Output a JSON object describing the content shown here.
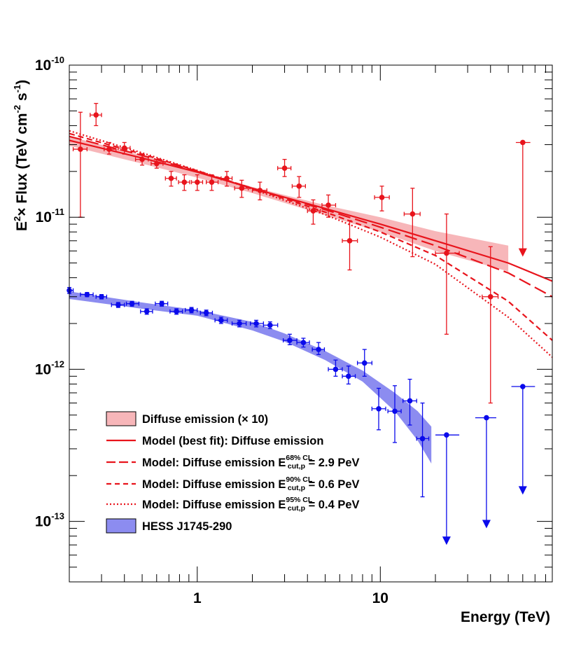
{
  "chart_data": {
    "type": "scatter",
    "title": "",
    "xlabel": "Energy (TeV)",
    "ylabel_parts": {
      "e": "E",
      "exp2": "2",
      "times": "× Flux (TeV cm",
      "exp_m2": "-2",
      "s": " s",
      "exp_m1": "-1",
      "close": ")"
    },
    "xscale": "log",
    "yscale": "log",
    "xlim": [
      0.2,
      87
    ],
    "ylim": [
      4e-14,
      1e-10
    ],
    "x_ticks": [
      {
        "value": 1,
        "label": "1"
      },
      {
        "value": 10,
        "label": "10"
      }
    ],
    "y_ticks": [
      {
        "value": 1e-13,
        "base": "10",
        "exp": "-13"
      },
      {
        "value": 1e-12,
        "base": "10",
        "exp": "-12"
      },
      {
        "value": 1e-11,
        "base": "10",
        "exp": "-11"
      },
      {
        "value": 1e-10,
        "base": "10",
        "exp": "-10"
      }
    ],
    "colors": {
      "red": "#e8141c",
      "red_band": "#f7b6b9",
      "blue": "#0a0aeb",
      "blue_band": "#8c8cf0"
    },
    "legend": [
      {
        "id": "diffuse_band",
        "style": "red-band",
        "label": "Diffuse emission (× 10)"
      },
      {
        "id": "model_best",
        "style": "red-solid",
        "label": "Model (best fit): Diffuse emission"
      },
      {
        "id": "model_68",
        "style": "red-longdash",
        "label": "Model: Diffuse emission E",
        "sup": "68% CL",
        "sub": "cut,p",
        "tail": " = 2.9 PeV"
      },
      {
        "id": "model_90",
        "style": "red-dash",
        "label": "Model: Diffuse emission E",
        "sup": "90% CL",
        "sub": "cut,p",
        "tail": " = 0.6 PeV"
      },
      {
        "id": "model_95",
        "style": "red-dot",
        "label": "Model: Diffuse emission E",
        "sup": "95% CL",
        "sub": "cut,p",
        "tail": " = 0.4 PeV"
      },
      {
        "id": "hess_band",
        "style": "blue-band",
        "label": "HESS J1745-290"
      }
    ],
    "bands": [
      {
        "name": "Diffuse emission (× 10)",
        "color": "red_band",
        "points": [
          [
            0.2,
            2.95e-11,
            3.4e-11
          ],
          [
            0.5,
            2.25e-11,
            2.55e-11
          ],
          [
            1.0,
            1.82e-11,
            2e-11
          ],
          [
            2.0,
            1.44e-11,
            1.58e-11
          ],
          [
            5.0,
            1.03e-11,
            1.2e-11
          ],
          [
            10.0,
            8e-12,
            1e-11
          ],
          [
            20.0,
            6e-12,
            8.1e-12
          ],
          [
            50.0,
            4.4e-12,
            6.5e-12
          ]
        ]
      },
      {
        "name": "HESS J1745-290",
        "color": "blue_band",
        "points": [
          [
            0.2,
            2.9e-12,
            3.25e-12
          ],
          [
            0.5,
            2.5e-12,
            2.75e-12
          ],
          [
            1.0,
            2.25e-12,
            2.45e-12
          ],
          [
            2.0,
            1.8e-12,
            2.05e-12
          ],
          [
            3.0,
            1.52e-12,
            1.72e-12
          ],
          [
            5.0,
            1.15e-12,
            1.32e-12
          ],
          [
            8.0,
            8.3e-13,
            9.8e-13
          ],
          [
            12.0,
            5.3e-13,
            7e-13
          ],
          [
            16.0,
            3.4e-13,
            5.3e-13
          ],
          [
            19.0,
            2.4e-13,
            4.2e-13
          ]
        ]
      }
    ],
    "model_lines": [
      {
        "name": "Model (best fit): Diffuse emission",
        "dash": "",
        "width": 2.2,
        "points": [
          [
            0.2,
            3.2e-11
          ],
          [
            0.5,
            2.45e-11
          ],
          [
            1,
            1.98e-11
          ],
          [
            2,
            1.55e-11
          ],
          [
            5,
            1.14e-11
          ],
          [
            10,
            9e-12
          ],
          [
            20,
            7e-12
          ],
          [
            50,
            5e-12
          ],
          [
            87,
            3.8e-12
          ]
        ]
      },
      {
        "name": "E68",
        "dash": "18,7",
        "width": 2.2,
        "points": [
          [
            0.2,
            3.4e-11
          ],
          [
            0.5,
            2.55e-11
          ],
          [
            1,
            2e-11
          ],
          [
            2,
            1.55e-11
          ],
          [
            5,
            1.12e-11
          ],
          [
            10,
            8.6e-12
          ],
          [
            20,
            6.5e-12
          ],
          [
            50,
            4.3e-12
          ],
          [
            87,
            3e-12
          ]
        ]
      },
      {
        "name": "E90",
        "dash": "8,5",
        "width": 2.2,
        "points": [
          [
            0.2,
            3.55e-11
          ],
          [
            0.5,
            2.6e-11
          ],
          [
            1,
            2.02e-11
          ],
          [
            2,
            1.55e-11
          ],
          [
            5,
            1.08e-11
          ],
          [
            10,
            8e-12
          ],
          [
            20,
            5.6e-12
          ],
          [
            50,
            2.8e-12
          ],
          [
            87,
            1.55e-12
          ]
        ]
      },
      {
        "name": "E95",
        "dash": "2,3",
        "width": 2.2,
        "points": [
          [
            0.2,
            3.7e-11
          ],
          [
            0.5,
            2.65e-11
          ],
          [
            1,
            2.03e-11
          ],
          [
            2,
            1.53e-11
          ],
          [
            5,
            1.04e-11
          ],
          [
            10,
            7.4e-12
          ],
          [
            20,
            4.9e-12
          ],
          [
            50,
            2.2e-12
          ],
          [
            87,
            1.2e-12
          ]
        ]
      }
    ],
    "series": [
      {
        "name": "Diffuse emission (× 10) data",
        "color": "red",
        "points": [
          [
            0.23,
            2.8e-11,
            0.21,
            0.25,
            1e-11,
            4.9e-11
          ],
          [
            0.28,
            4.7e-11,
            0.26,
            0.3,
            4e-11,
            5.6e-11
          ],
          [
            0.33,
            2.8e-11,
            0.31,
            0.36,
            2.6e-11,
            3.1e-11
          ],
          [
            0.4,
            2.85e-11,
            0.37,
            0.43,
            2.6e-11,
            3.1e-11
          ],
          [
            0.5,
            2.4e-11,
            0.46,
            0.54,
            2.2e-11,
            2.6e-11
          ],
          [
            0.6,
            2.25e-11,
            0.56,
            0.65,
            2.1e-11,
            2.4e-11
          ],
          [
            0.72,
            1.8e-11,
            0.67,
            0.77,
            1.6e-11,
            2e-11
          ],
          [
            0.85,
            1.7e-11,
            0.79,
            0.91,
            1.5e-11,
            1.9e-11
          ],
          [
            1.0,
            1.7e-11,
            0.93,
            1.07,
            1.5e-11,
            1.9e-11
          ],
          [
            1.2,
            1.7e-11,
            1.12,
            1.3,
            1.5e-11,
            1.9e-11
          ],
          [
            1.45,
            1.8e-11,
            1.35,
            1.55,
            1.6e-11,
            2e-11
          ],
          [
            1.75,
            1.55e-11,
            1.6,
            1.9,
            1.35e-11,
            1.75e-11
          ],
          [
            2.2,
            1.5e-11,
            2.0,
            2.4,
            1.3e-11,
            1.7e-11
          ],
          [
            3.0,
            2.1e-11,
            2.75,
            3.25,
            1.85e-11,
            2.4e-11
          ],
          [
            3.6,
            1.6e-11,
            3.3,
            3.9,
            1.35e-11,
            1.85e-11
          ],
          [
            4.3,
            1.1e-11,
            4.0,
            4.7,
            9e-12,
            1.3e-11
          ],
          [
            5.2,
            1.2e-11,
            4.8,
            5.7,
            1e-11,
            1.4e-11
          ],
          [
            6.8,
            7e-12,
            6.2,
            7.5,
            4.5e-12,
            9.5e-12
          ],
          [
            10.2,
            1.35e-11,
            9.3,
            11.2,
            1.1e-11,
            1.6e-11
          ],
          [
            15,
            1.05e-11,
            13.5,
            16.5,
            5.5e-12,
            1.55e-11
          ],
          [
            23,
            5.8e-12,
            20,
            27,
            1.7e-12,
            1.05e-11
          ],
          [
            40,
            3e-12,
            36,
            44,
            6e-13,
            6.4e-12
          ]
        ],
        "upper_limits": [
          [
            60,
            3.1e-11,
            55,
            66,
            5.5e-12
          ]
        ]
      },
      {
        "name": "HESS J1745-290 data",
        "color": "blue",
        "points": [
          [
            0.2,
            3.3e-12,
            0.2,
            0.21,
            3.15e-12,
            3.45e-12
          ],
          [
            0.25,
            3.1e-12,
            0.23,
            0.27,
            3e-12,
            3.2e-12
          ],
          [
            0.3,
            3e-12,
            0.28,
            0.32,
            2.9e-12,
            3.1e-12
          ],
          [
            0.37,
            2.65e-12,
            0.34,
            0.4,
            2.55e-12,
            2.75e-12
          ],
          [
            0.44,
            2.7e-12,
            0.41,
            0.48,
            2.6e-12,
            2.8e-12
          ],
          [
            0.53,
            2.4e-12,
            0.49,
            0.57,
            2.3e-12,
            2.5e-12
          ],
          [
            0.64,
            2.7e-12,
            0.59,
            0.69,
            2.6e-12,
            2.8e-12
          ],
          [
            0.77,
            2.4e-12,
            0.71,
            0.83,
            2.3e-12,
            2.5e-12
          ],
          [
            0.93,
            2.45e-12,
            0.86,
            1.0,
            2.35e-12,
            2.55e-12
          ],
          [
            1.12,
            2.35e-12,
            1.04,
            1.21,
            2.25e-12,
            2.45e-12
          ],
          [
            1.35,
            2.1e-12,
            1.25,
            1.46,
            2e-12,
            2.2e-12
          ],
          [
            1.7,
            2e-12,
            1.55,
            1.85,
            1.9e-12,
            2.1e-12
          ],
          [
            2.1,
            2e-12,
            1.95,
            2.3,
            1.9e-12,
            2.1e-12
          ],
          [
            2.5,
            1.95e-12,
            2.3,
            2.75,
            1.85e-12,
            2.05e-12
          ],
          [
            3.2,
            1.55e-12,
            2.95,
            3.5,
            1.45e-12,
            1.7e-12
          ],
          [
            3.8,
            1.5e-12,
            3.5,
            4.1,
            1.4e-12,
            1.6e-12
          ],
          [
            4.6,
            1.35e-12,
            4.25,
            4.95,
            1.25e-12,
            1.5e-12
          ],
          [
            5.7,
            1e-12,
            5.2,
            6.2,
            9e-13,
            1.15e-12
          ],
          [
            6.7,
            9e-13,
            6.2,
            7.3,
            8e-13,
            1.05e-12
          ],
          [
            8.2,
            1.1e-12,
            7.5,
            9.0,
            9e-13,
            1.35e-12
          ],
          [
            9.8,
            5.5e-13,
            9.0,
            10.7,
            4e-13,
            7.5e-13
          ],
          [
            12,
            5.3e-13,
            11,
            13,
            3.3e-13,
            7.8e-13
          ],
          [
            14.5,
            6.2e-13,
            13.3,
            15.8,
            4.3e-13,
            8.6e-13
          ],
          [
            17,
            3.5e-13,
            15.8,
            18.4,
            1.45e-13,
            6e-13
          ]
        ],
        "upper_limits": [
          [
            23,
            3.7e-13,
            20,
            27,
            7e-14
          ],
          [
            38,
            4.8e-13,
            33,
            43,
            9e-14
          ],
          [
            60,
            7.7e-13,
            52,
            70,
            1.5e-13
          ]
        ]
      }
    ]
  }
}
